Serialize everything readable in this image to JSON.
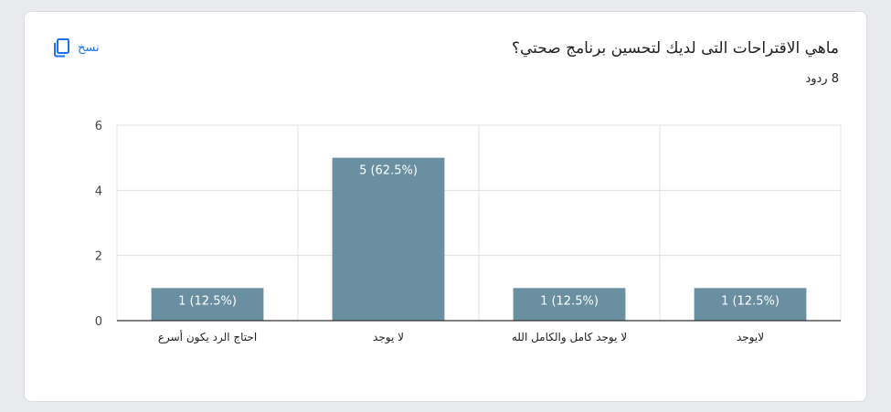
{
  "header": {
    "title": "ماهي الاقتراحات التى لديك لتحسين برنامج صحتي؟",
    "responses": "8 ردود",
    "copy_label": "نسخ",
    "copy_icon": "copy-icon"
  },
  "colors": {
    "bar": "#6a8fa0",
    "accent": "#1a73e8",
    "grid": "#e0e0e0",
    "axis": "#333333"
  },
  "chart_data": {
    "type": "bar",
    "categories": [
      "احتاج الرد يكون أسرع",
      "لا يوجد",
      "لا يوجد كامل والكامل الله",
      "لايوجد"
    ],
    "values": [
      1,
      5,
      1,
      1
    ],
    "data_labels": [
      "1 (12.5%)",
      "5 (62.5%)",
      "1 (12.5%)",
      "1 (12.5%)"
    ],
    "yticks": [
      0,
      2,
      4,
      6
    ],
    "ylim": [
      0,
      6
    ],
    "grid": true
  }
}
